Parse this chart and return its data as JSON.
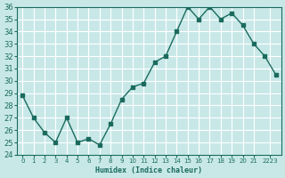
{
  "x": [
    0,
    1,
    2,
    3,
    4,
    5,
    6,
    7,
    8,
    9,
    10,
    11,
    12,
    13,
    14,
    15,
    16,
    17,
    18,
    19,
    20,
    21,
    22,
    23
  ],
  "y": [
    28.8,
    27.0,
    25.8,
    25.0,
    27.0,
    25.0,
    25.3,
    24.8,
    26.5,
    28.5,
    29.5,
    29.8,
    31.5,
    32.0,
    34.0,
    36.0,
    35.0,
    36.0,
    35.0,
    35.5,
    34.5,
    33.0,
    32.0,
    30.5
  ],
  "xlabel": "Humidex (Indice chaleur)",
  "ylim": [
    24,
    36
  ],
  "yticks": [
    24,
    25,
    26,
    27,
    28,
    29,
    30,
    31,
    32,
    33,
    34,
    35,
    36
  ],
  "xtick_positions": [
    0,
    1,
    2,
    3,
    4,
    5,
    6,
    7,
    8,
    9,
    10,
    11,
    12,
    13,
    14,
    15,
    16,
    17,
    18,
    19,
    20,
    21,
    22.5
  ],
  "xtick_labels": [
    "0",
    "1",
    "2",
    "3",
    "4",
    "5",
    "6",
    "7",
    "8",
    "9",
    "10",
    "11",
    "12",
    "13",
    "14",
    "15",
    "16",
    "17",
    "18",
    "19",
    "20",
    "21",
    "2223"
  ],
  "line_color": "#1a6b5e",
  "marker_color": "#1a6b5e",
  "bg_color": "#c8e8e8",
  "grid_color": "#ffffff",
  "text_color": "#1a6b5e"
}
